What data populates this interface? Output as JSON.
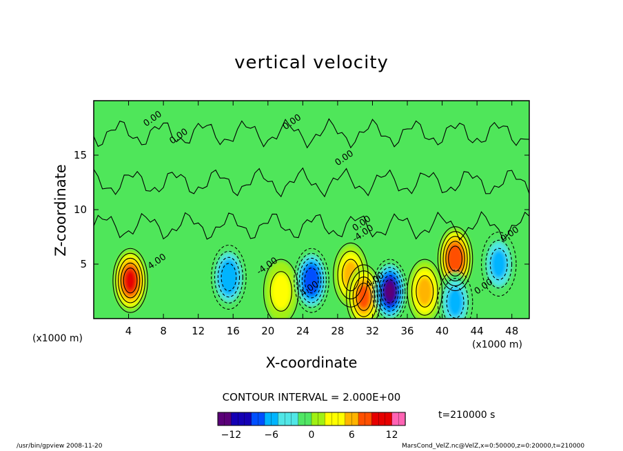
{
  "chart_data": {
    "type": "heatmap",
    "title": "vertical velocity",
    "xlabel": "X-coordinate",
    "ylabel": "Z-coordinate",
    "x_unit_label": "(x1000 m)",
    "xlim": [
      0,
      50
    ],
    "ylim": [
      0,
      20
    ],
    "x_ticks": [
      "4",
      "8",
      "12",
      "16",
      "20",
      "24",
      "28",
      "32",
      "36",
      "40",
      "44",
      "48"
    ],
    "y_ticks": [
      "5",
      "10",
      "15"
    ],
    "contour_interval": "CONTOUR INTERVAL = 2.000E+00",
    "contour_labels": [
      "0.00",
      "0.00",
      "0.00",
      "0.00",
      "0.00",
      "0.00",
      "4.00",
      "4.00",
      "-4.00",
      "-4.00",
      "4.00",
      "0.00"
    ],
    "colorbar": {
      "ticks": [
        "−12",
        "−6",
        "0",
        "6",
        "12"
      ],
      "range": [
        -14,
        14
      ],
      "colors": [
        "#5a0078",
        "#1400b4",
        "#0050ff",
        "#00b4ff",
        "#50e6e6",
        "#50e664",
        "#a0f014",
        "#ffff00",
        "#ffb400",
        "#ff5000",
        "#e60000",
        "#ff64b4"
      ]
    },
    "time_label": "t=210000 s",
    "features": [
      {
        "x": 4.2,
        "z": 3.5,
        "w": 9.5
      },
      {
        "x": 15.5,
        "z": 3.8,
        "w": -7
      },
      {
        "x": 21.5,
        "z": 2.5,
        "w": 4
      },
      {
        "x": 25,
        "z": 3.5,
        "w": -9
      },
      {
        "x": 29.5,
        "z": 4,
        "w": 6
      },
      {
        "x": 31,
        "z": 2,
        "w": 8
      },
      {
        "x": 34,
        "z": 2.5,
        "w": -12
      },
      {
        "x": 38,
        "z": 2.5,
        "w": 5
      },
      {
        "x": 41.5,
        "z": 5.5,
        "w": 9
      },
      {
        "x": 41.5,
        "z": 1.5,
        "w": -6
      },
      {
        "x": 46.5,
        "z": 5,
        "w": -5
      }
    ]
  },
  "footer": {
    "left": "/usr/bin/gpview  2008-11-20",
    "right": "MarsCond_VelZ.nc@VelZ,x=0:50000,z=0:20000,t=210000"
  }
}
